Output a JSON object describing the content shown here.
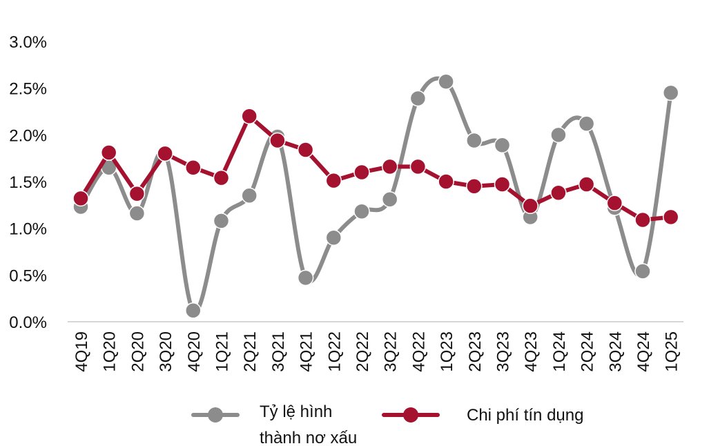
{
  "chart_data": {
    "type": "line",
    "title": "",
    "xlabel": "",
    "ylabel": "",
    "ylim": [
      0,
      3.0
    ],
    "yticks": [
      "0.0%",
      "0.5%",
      "1.0%",
      "1.5%",
      "2.0%",
      "2.5%",
      "3.0%"
    ],
    "ytick_values": [
      0,
      0.5,
      1.0,
      1.5,
      2.0,
      2.5,
      3.0
    ],
    "grid": false,
    "legend_position": "bottom",
    "categories": [
      "4Q19",
      "1Q20",
      "2Q20",
      "3Q20",
      "4Q20",
      "1Q21",
      "2Q21",
      "3Q21",
      "4Q21",
      "1Q22",
      "2Q22",
      "3Q22",
      "4Q22",
      "1Q23",
      "2Q23",
      "3Q23",
      "4Q23",
      "1Q24",
      "2Q24",
      "3Q24",
      "4Q24",
      "1Q25"
    ],
    "series": [
      {
        "name": "Tỷ lệ hình thành nơ xấu",
        "legend_lines": [
          "Tỷ lệ hình",
          "thành nơ xấu"
        ],
        "color": "#8c8c8c",
        "smooth": true,
        "values": [
          1.23,
          1.65,
          1.16,
          1.8,
          0.12,
          1.08,
          1.35,
          1.98,
          0.47,
          0.9,
          1.18,
          1.31,
          2.39,
          2.57,
          1.94,
          1.89,
          1.12,
          2.0,
          2.12,
          1.22,
          0.54,
          2.45
        ]
      },
      {
        "name": "Chi phí tín dụng",
        "legend_lines": [
          "Chi phí tín dụng"
        ],
        "color": "#a4122f",
        "smooth": false,
        "values": [
          1.32,
          1.81,
          1.37,
          1.8,
          1.65,
          1.54,
          2.2,
          1.94,
          1.84,
          1.51,
          1.6,
          1.66,
          1.66,
          1.5,
          1.45,
          1.47,
          1.24,
          1.38,
          1.47,
          1.27,
          1.09,
          1.12
        ]
      }
    ]
  }
}
